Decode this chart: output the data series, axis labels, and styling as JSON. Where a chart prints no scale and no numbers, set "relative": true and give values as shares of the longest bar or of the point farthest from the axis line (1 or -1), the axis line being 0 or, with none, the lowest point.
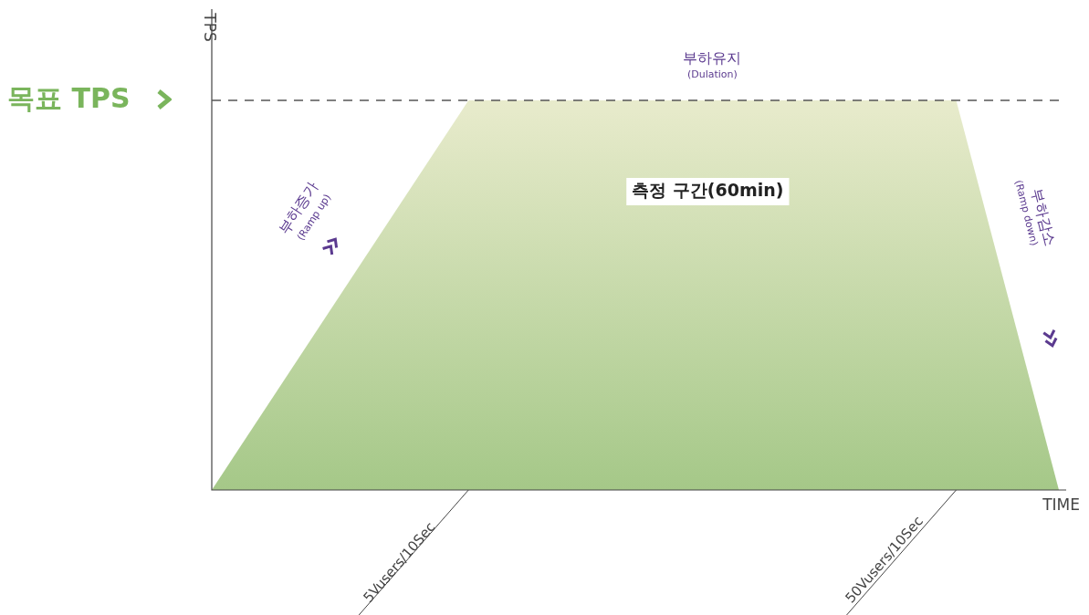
{
  "chart_data": {
    "type": "area",
    "relative": true,
    "xlabel": "TIME",
    "ylabel": "TPS",
    "categories": [
      null,
      null,
      null,
      null,
      null,
      null,
      null,
      null,
      null,
      null,
      null,
      null,
      null,
      null,
      null,
      null,
      null,
      null,
      null,
      null,
      null,
      null,
      null,
      null,
      null,
      null,
      null,
      null,
      null,
      null,
      null,
      null,
      null,
      null
    ],
    "series": [
      {
        "color": "#a5c888",
        "values": [
          0,
          null,
          null,
          null,
          null,
          null,
          null,
          null,
          null,
          null,
          1,
          null,
          null,
          null,
          null,
          null,
          null,
          null,
          null,
          null,
          null,
          null,
          null,
          null,
          null,
          null,
          null,
          null,
          null,
          1,
          null,
          null,
          null,
          0
        ]
      }
    ],
    "ref_lines": [
      {
        "axis": "y",
        "value": 1,
        "label": "목표 TPS",
        "color": "#555555",
        "line_style": "dashed"
      }
    ],
    "annotations": [
      "부하유지",
      "(Dulation)",
      "측정 구간(60min)",
      "부하증가",
      "(Ramp up)",
      "부하감소",
      "(Ramp down)",
      "5Vusers/10Sec",
      "50Vusers/10Sec"
    ],
    "legend": false
  }
}
